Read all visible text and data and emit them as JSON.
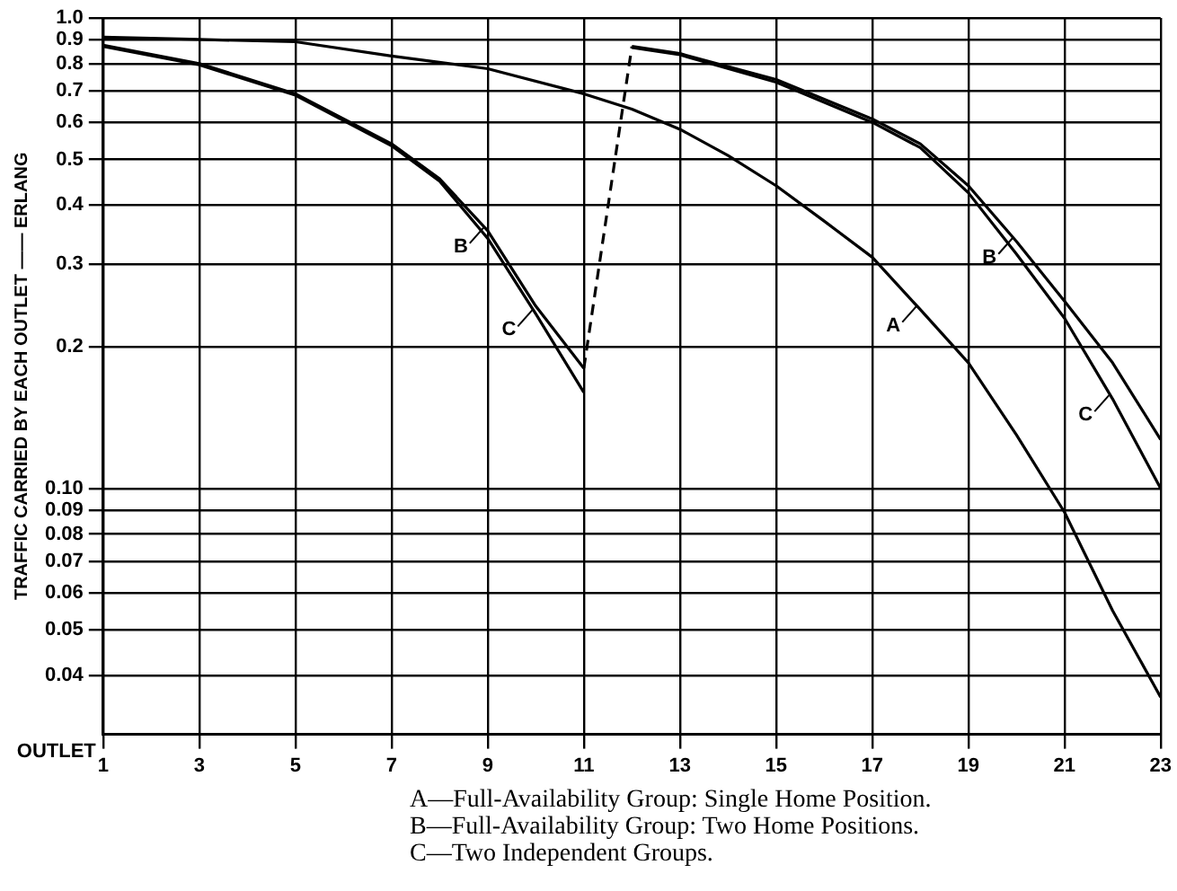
{
  "chart_data": {
    "type": "line",
    "ylabel": "TRAFFIC CARRIED BY EACH OUTLET —— ERLANG",
    "xlabel": "OUTLET",
    "xlim": [
      1,
      23
    ],
    "xticks": [
      1,
      3,
      5,
      7,
      9,
      11,
      13,
      15,
      17,
      19,
      21,
      23
    ],
    "ylim": [
      0.03,
      1
    ],
    "yticks": [
      {
        "value": 1,
        "label": "1.0"
      },
      0.9,
      0.8,
      0.7,
      0.6,
      0.5,
      0.4,
      0.3,
      0.2,
      {
        "value": 0.1,
        "label": "0.10"
      },
      0.09,
      0.08,
      0.07,
      0.06,
      0.05,
      0.04
    ],
    "log": "y",
    "grid": true,
    "legend": false,
    "marker": "none",
    "series": [
      {
        "color": "#000000",
        "x": [
          1,
          3,
          5,
          7,
          9,
          11,
          12,
          13,
          14,
          15,
          16,
          17,
          18,
          19,
          20,
          21,
          22,
          23
        ],
        "values": [
          0.91,
          0.9,
          0.89,
          0.83,
          0.78,
          0.69,
          0.64,
          0.58,
          0.51,
          0.44,
          0.37,
          0.31,
          0.24,
          0.185,
          0.13,
          0.089,
          0.055,
          0.036
        ]
      },
      {
        "color": "#000000",
        "x": [
          1,
          3,
          5,
          7,
          8,
          9,
          10,
          11
        ],
        "values": [
          0.875,
          0.8,
          0.69,
          0.54,
          0.455,
          0.353,
          0.244,
          0.18
        ]
      },
      {
        "color": "#000000",
        "x": [
          1,
          3,
          5,
          7,
          8,
          9,
          10,
          11
        ],
        "values": [
          0.87,
          0.795,
          0.685,
          0.535,
          0.45,
          0.34,
          0.235,
          0.16
        ]
      },
      {
        "color": "#000000",
        "x": [
          12,
          13,
          15,
          17,
          18,
          19,
          20,
          21,
          22,
          23
        ],
        "values": [
          0.87,
          0.84,
          0.74,
          0.61,
          0.54,
          0.44,
          0.335,
          0.25,
          0.185,
          0.127
        ]
      },
      {
        "color": "#000000",
        "x": [
          12,
          13,
          15,
          17,
          18,
          19,
          20,
          21,
          22,
          23
        ],
        "values": [
          0.865,
          0.835,
          0.73,
          0.6,
          0.53,
          0.425,
          0.315,
          0.23,
          0.155,
          0.1
        ]
      },
      {
        "color": "#000000",
        "line_style": "dashed",
        "x": [
          11,
          12
        ],
        "values": [
          0.18,
          0.87
        ]
      }
    ],
    "annotations": [
      {
        "text": "A",
        "x": 18,
        "y": 0.24
      },
      {
        "text": "B",
        "x": 9,
        "y": 0.353
      },
      {
        "text": "C",
        "x": 10,
        "y": 0.235
      },
      {
        "text": "B",
        "x": 20,
        "y": 0.335
      },
      {
        "text": "C",
        "x": 22,
        "y": 0.155
      },
      "A—Full-Availability Group: Single Home Position.",
      "B—Full-Availability Group: Two Home Positions.",
      "C—Two Independent Groups."
    ]
  }
}
